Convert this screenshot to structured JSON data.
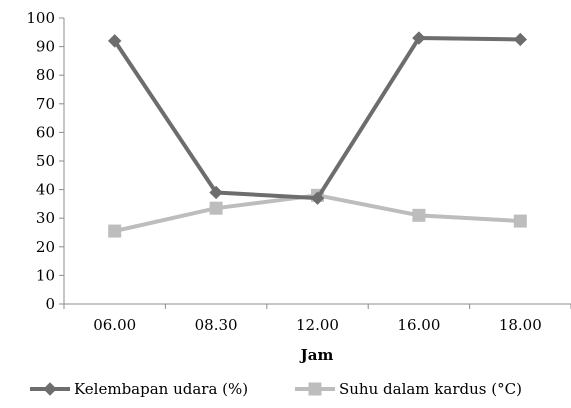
{
  "chart_data": {
    "type": "line",
    "title": "",
    "xlabel": "Jam",
    "ylabel": "",
    "categories": [
      "06.00",
      "08.30",
      "12.00",
      "16.00",
      "18.00"
    ],
    "ylim": [
      0,
      100
    ],
    "yticks": [
      "0",
      "10",
      "20",
      "30",
      "40",
      "50",
      "60",
      "70",
      "80",
      "90",
      "100"
    ],
    "grid": false,
    "legend_position": "bottom",
    "series": [
      {
        "name": "Kelembapan udara (%)",
        "values": [
          92,
          39,
          37,
          93,
          92.5
        ],
        "color": "#6d6d6d",
        "marker": "diamond"
      },
      {
        "name": "Suhu dalam kardus (°C)",
        "values": [
          25.5,
          33.5,
          38,
          31,
          29
        ],
        "color": "#bdbdbd",
        "marker": "square"
      }
    ]
  }
}
